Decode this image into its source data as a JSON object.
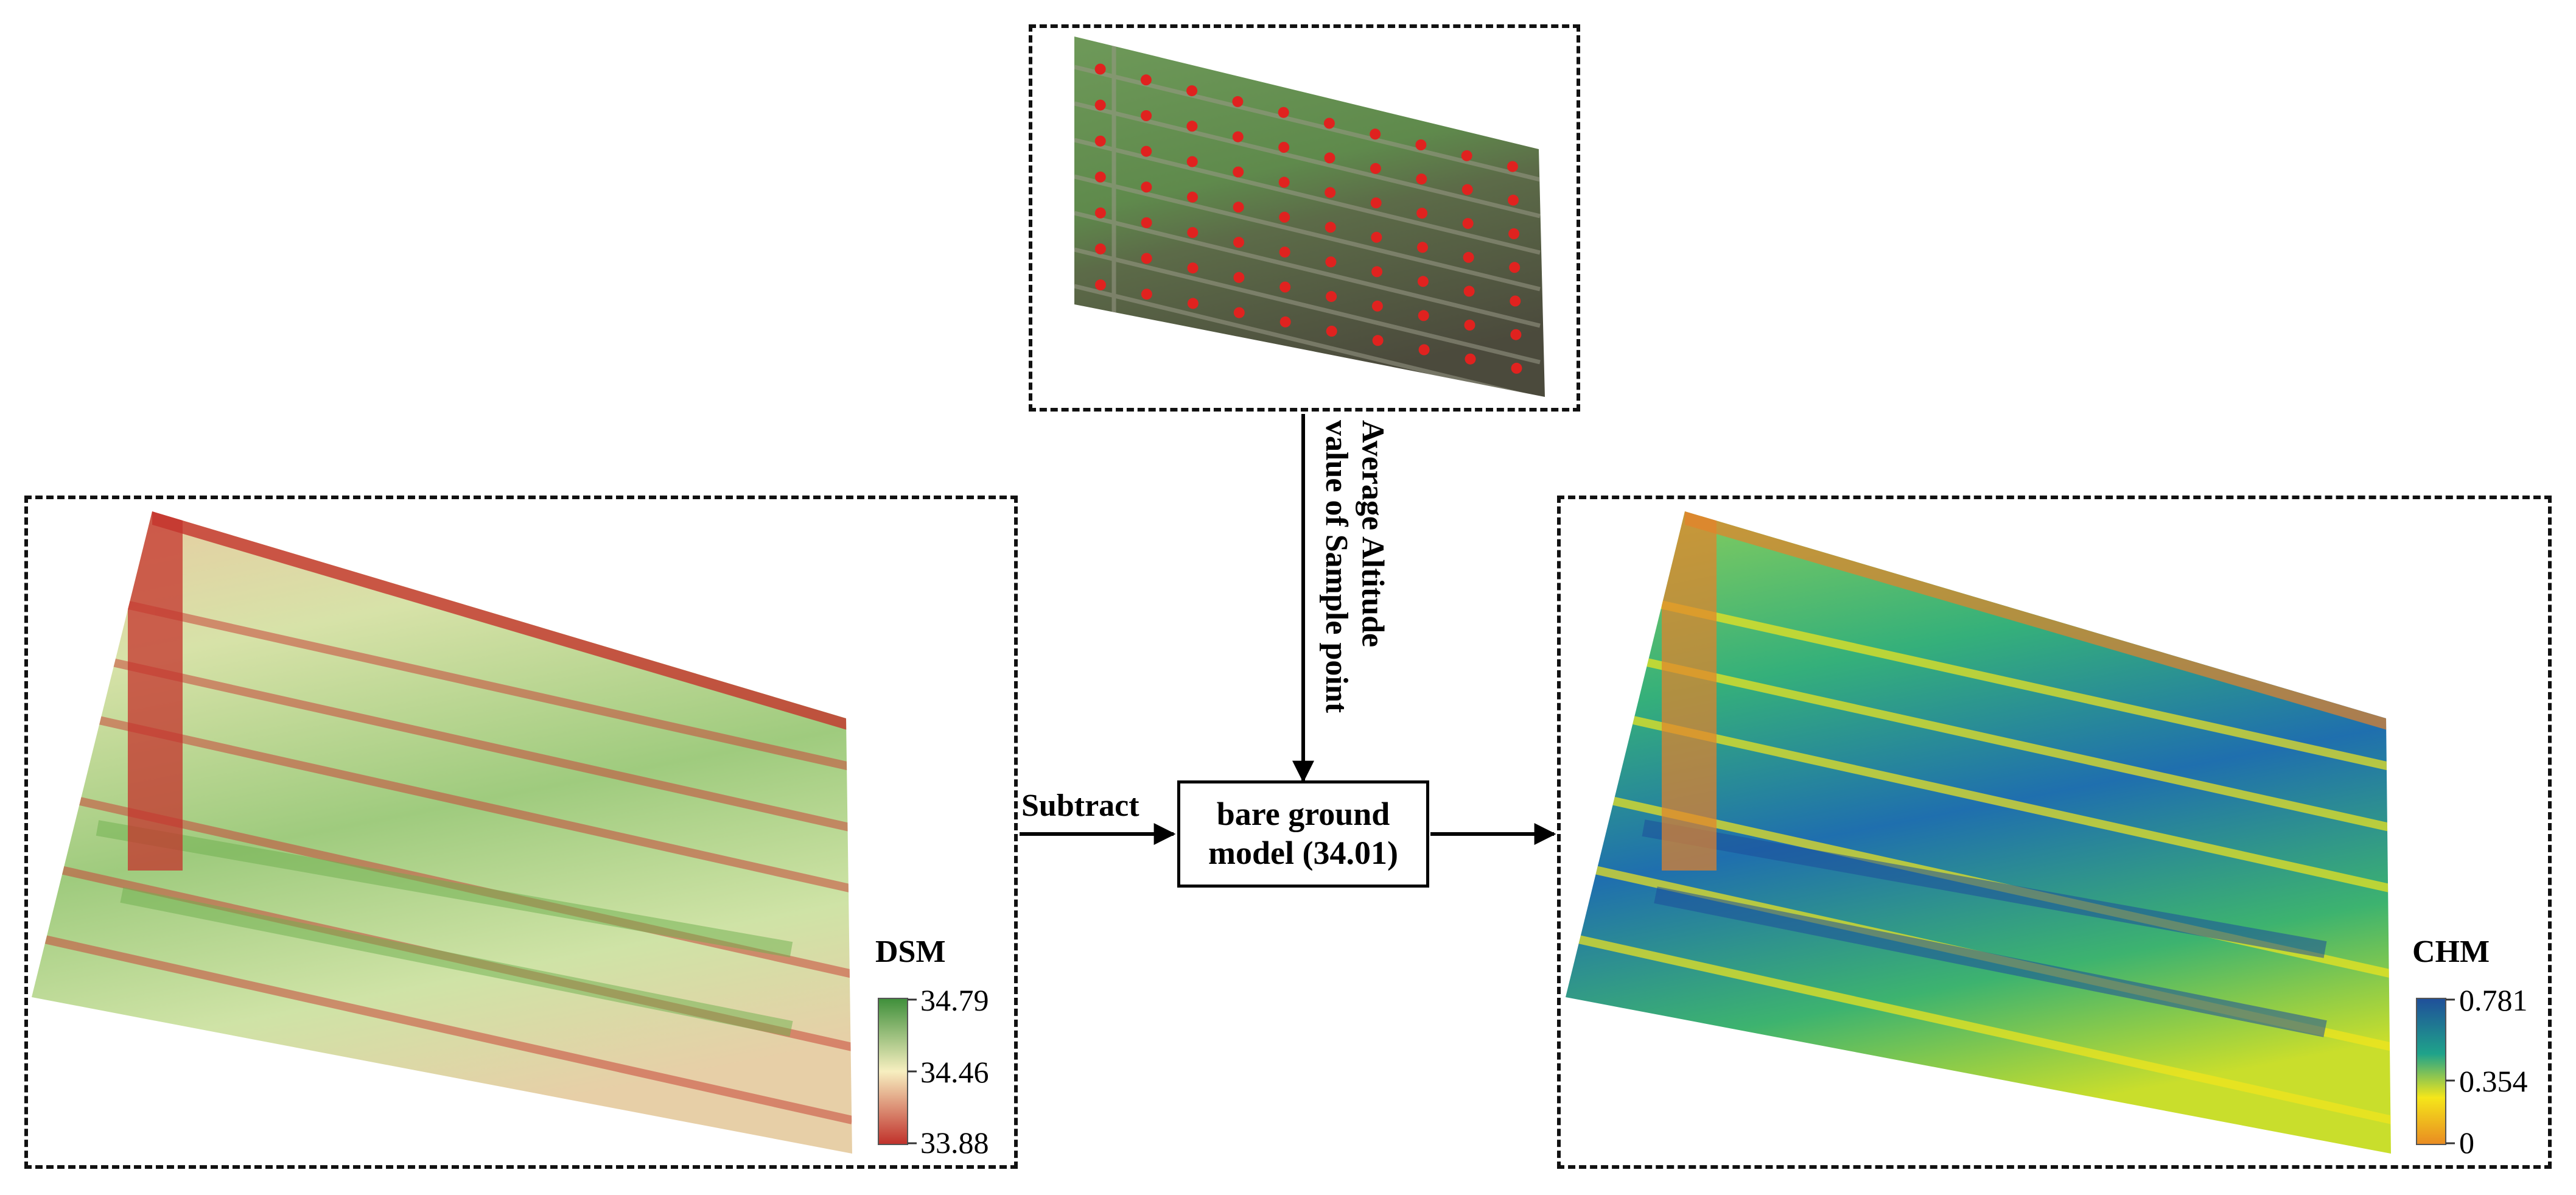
{
  "sample_panel": {
    "icon": "orthophoto-with-sample-points"
  },
  "dsm_panel": {
    "label": "DSM",
    "colorbar": {
      "max": "34.79",
      "mid": "34.46",
      "min": "33.88",
      "colors": [
        "#3e8f3a",
        "#f7efc0",
        "#c0302a"
      ]
    },
    "map_colors": {
      "high": "#7dbb62",
      "mid": "#f2e6b6",
      "low": "#c23b2e"
    }
  },
  "chm_panel": {
    "label": "CHM",
    "colorbar": {
      "max": "0.781",
      "mid": "0.354",
      "min": "0",
      "colors": [
        "#1f4f9a",
        "#1fa38a",
        "#f5e61a",
        "#e98b22"
      ]
    },
    "map_colors": {
      "high": "#1f5ea8",
      "mid": "#2fab79",
      "low": "#f0e218",
      "edge": "#e07a2a"
    }
  },
  "flow": {
    "vertical_label_line1": "Average Altitude",
    "vertical_label_line2": "value of Sample point",
    "subtract_label": "Subtract",
    "model_line1": "bare ground",
    "model_line2": "model (34.01)"
  }
}
